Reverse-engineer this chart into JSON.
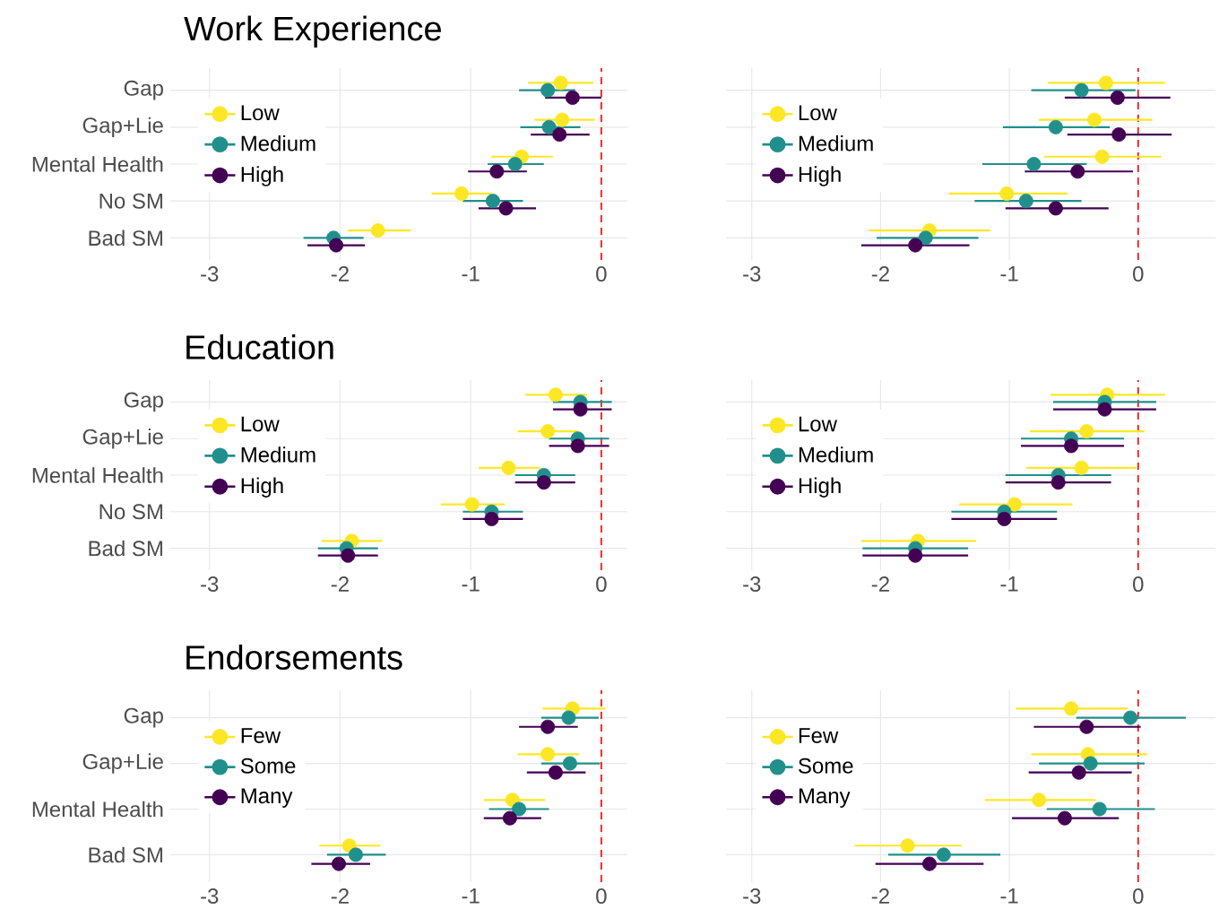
{
  "chart_data": [
    {
      "type": "scatter",
      "title": "Work Experience",
      "orientation": "horizontal",
      "categories": [
        "Gap",
        "Gap+Lie",
        "Mental Health",
        "No SM",
        "Bad SM"
      ],
      "xlim": [
        -3.3,
        0.2
      ],
      "xticks": [
        -3,
        -2,
        -1,
        0
      ],
      "grid": true,
      "legend": "left",
      "marker": "circle",
      "ref_lines": [
        {
          "axis": "x",
          "value": 0,
          "color": "#ff0000",
          "line_style": "dashed"
        }
      ],
      "series": [
        {
          "name": "Low",
          "color": "#fde725",
          "values": [
            -0.31,
            -0.3,
            -0.61,
            -1.07,
            -1.71
          ],
          "errors": [
            [
              -0.56,
              -0.06
            ],
            [
              -0.51,
              -0.05
            ],
            [
              -0.84,
              -0.37
            ],
            [
              -1.3,
              -0.84
            ],
            [
              -1.94,
              -1.46
            ]
          ]
        },
        {
          "name": "Medium",
          "color": "#21908c",
          "values": [
            -0.41,
            -0.4,
            -0.66,
            -0.83,
            -2.05
          ],
          "errors": [
            [
              -0.63,
              -0.2
            ],
            [
              -0.62,
              -0.16
            ],
            [
              -0.87,
              -0.44
            ],
            [
              -1.06,
              -0.6
            ],
            [
              -2.28,
              -1.82
            ]
          ]
        },
        {
          "name": "High",
          "color": "#440154",
          "values": [
            -0.22,
            -0.32,
            -0.8,
            -0.73,
            -2.03
          ],
          "errors": [
            [
              -0.43,
              0.0
            ],
            [
              -0.54,
              -0.09
            ],
            [
              -1.02,
              -0.57
            ],
            [
              -0.94,
              -0.5
            ],
            [
              -2.25,
              -1.81
            ]
          ]
        }
      ]
    },
    {
      "type": "scatter",
      "orientation": "horizontal",
      "categories": [
        null,
        null,
        null,
        null,
        null
      ],
      "xlim": [
        -3.2,
        0.6
      ],
      "xticks": [
        -3,
        -2,
        -1,
        0
      ],
      "grid": true,
      "legend": "left",
      "marker": "circle",
      "tick_labels": "x",
      "ref_lines": [
        {
          "axis": "x",
          "value": 0,
          "color": "#ff0000",
          "line_style": "dashed"
        }
      ],
      "series": [
        {
          "name": "Low",
          "color": "#fde725",
          "values": [
            -0.25,
            -0.34,
            -0.28,
            -1.02,
            -1.62
          ],
          "errors": [
            [
              -0.7,
              0.21
            ],
            [
              -0.77,
              0.11
            ],
            [
              -0.73,
              0.18
            ],
            [
              -1.47,
              -0.55
            ],
            [
              -2.09,
              -1.15
            ]
          ]
        },
        {
          "name": "Medium",
          "color": "#21908c",
          "values": [
            -0.44,
            -0.64,
            -0.81,
            -0.87,
            -1.65
          ],
          "errors": [
            [
              -0.83,
              -0.02
            ],
            [
              -1.05,
              -0.22
            ],
            [
              -1.21,
              -0.4
            ],
            [
              -1.27,
              -0.44
            ],
            [
              -2.03,
              -1.24
            ]
          ]
        },
        {
          "name": "High",
          "color": "#440154",
          "values": [
            -0.16,
            -0.15,
            -0.47,
            -0.64,
            -1.73
          ],
          "errors": [
            [
              -0.57,
              0.25
            ],
            [
              -0.55,
              0.26
            ],
            [
              -0.88,
              -0.04
            ],
            [
              -1.03,
              -0.23
            ],
            [
              -2.15,
              -1.31
            ]
          ]
        }
      ]
    },
    {
      "type": "scatter",
      "title": "Education",
      "orientation": "horizontal",
      "categories": [
        "Gap",
        "Gap+Lie",
        "Mental Health",
        "No SM",
        "Bad SM"
      ],
      "xlim": [
        -3.3,
        0.2
      ],
      "xticks": [
        -3,
        -2,
        -1,
        0
      ],
      "grid": true,
      "legend": "left",
      "marker": "circle",
      "ref_lines": [
        {
          "axis": "x",
          "value": 0,
          "color": "#ff0000",
          "line_style": "dashed"
        }
      ],
      "series": [
        {
          "name": "Low",
          "color": "#fde725",
          "values": [
            -0.35,
            -0.41,
            -0.71,
            -0.99,
            -1.91
          ],
          "errors": [
            [
              -0.58,
              -0.11
            ],
            [
              -0.64,
              -0.18
            ],
            [
              -0.94,
              -0.47
            ],
            [
              -1.23,
              -0.74
            ],
            [
              -2.14,
              -1.68
            ]
          ]
        },
        {
          "name": "Medium",
          "color": "#21908c",
          "values": [
            -0.16,
            -0.18,
            -0.44,
            -0.84,
            -1.95
          ],
          "errors": [
            [
              -0.37,
              0.08
            ],
            [
              -0.4,
              0.06
            ],
            [
              -0.66,
              -0.2
            ],
            [
              -1.06,
              -0.6
            ],
            [
              -2.17,
              -1.71
            ]
          ]
        },
        {
          "name": "High",
          "color": "#440154",
          "values": [
            -0.16,
            -0.18,
            -0.44,
            -0.84,
            -1.94
          ],
          "errors": [
            [
              -0.37,
              0.08
            ],
            [
              -0.4,
              0.06
            ],
            [
              -0.66,
              -0.2
            ],
            [
              -1.06,
              -0.6
            ],
            [
              -2.17,
              -1.71
            ]
          ]
        }
      ]
    },
    {
      "type": "scatter",
      "orientation": "horizontal",
      "categories": [
        null,
        null,
        null,
        null,
        null
      ],
      "xlim": [
        -3.2,
        0.6
      ],
      "xticks": [
        -3,
        -2,
        -1,
        0
      ],
      "grid": true,
      "legend": "left",
      "marker": "circle",
      "tick_labels": "x",
      "ref_lines": [
        {
          "axis": "x",
          "value": 0,
          "color": "#ff0000",
          "line_style": "dashed"
        }
      ],
      "series": [
        {
          "name": "Low",
          "color": "#fde725",
          "values": [
            -0.24,
            -0.4,
            -0.44,
            -0.96,
            -1.71
          ],
          "errors": [
            [
              -0.68,
              0.21
            ],
            [
              -0.84,
              0.05
            ],
            [
              -0.87,
              -0.01
            ],
            [
              -1.39,
              -0.51
            ],
            [
              -2.15,
              -1.26
            ]
          ]
        },
        {
          "name": "Medium",
          "color": "#21908c",
          "values": [
            -0.26,
            -0.52,
            -0.62,
            -1.04,
            -1.73
          ],
          "errors": [
            [
              -0.66,
              0.14
            ],
            [
              -0.91,
              -0.11
            ],
            [
              -1.03,
              -0.21
            ],
            [
              -1.45,
              -0.63
            ],
            [
              -2.14,
              -1.32
            ]
          ]
        },
        {
          "name": "High",
          "color": "#440154",
          "values": [
            -0.26,
            -0.52,
            -0.62,
            -1.04,
            -1.73
          ],
          "errors": [
            [
              -0.66,
              0.14
            ],
            [
              -0.91,
              -0.11
            ],
            [
              -1.03,
              -0.21
            ],
            [
              -1.45,
              -0.63
            ],
            [
              -2.14,
              -1.32
            ]
          ]
        }
      ]
    },
    {
      "type": "scatter",
      "title": "Endorsements",
      "orientation": "horizontal",
      "categories": [
        "Gap",
        "Gap+Lie",
        "Mental Health",
        "Bad SM"
      ],
      "xlim": [
        -3.3,
        0.2
      ],
      "xticks": [
        -3,
        -2,
        -1,
        0
      ],
      "grid": true,
      "legend": "left",
      "marker": "circle",
      "ref_lines": [
        {
          "axis": "x",
          "value": 0,
          "color": "#ff0000",
          "line_style": "dashed"
        }
      ],
      "series": [
        {
          "name": "Few",
          "color": "#fde725",
          "values": [
            -0.22,
            -0.41,
            -0.68,
            -1.93
          ],
          "errors": [
            [
              -0.45,
              0.03
            ],
            [
              -0.64,
              -0.17
            ],
            [
              -0.9,
              -0.43
            ],
            [
              -2.16,
              -1.69
            ]
          ]
        },
        {
          "name": "Some",
          "color": "#21908c",
          "values": [
            -0.25,
            -0.24,
            -0.63,
            -1.88
          ],
          "errors": [
            [
              -0.46,
              -0.02
            ],
            [
              -0.46,
              -0.01
            ],
            [
              -0.86,
              -0.4
            ],
            [
              -2.1,
              -1.65
            ]
          ]
        },
        {
          "name": "Many",
          "color": "#440154",
          "values": [
            -0.41,
            -0.35,
            -0.7,
            -2.01
          ],
          "errors": [
            [
              -0.63,
              -0.18
            ],
            [
              -0.57,
              -0.12
            ],
            [
              -0.9,
              -0.46
            ],
            [
              -2.22,
              -1.77
            ]
          ]
        }
      ]
    },
    {
      "type": "scatter",
      "orientation": "horizontal",
      "categories": [
        null,
        null,
        null,
        null
      ],
      "xlim": [
        -3.2,
        0.6
      ],
      "xticks": [
        -3,
        -2,
        -1,
        0
      ],
      "grid": true,
      "legend": "left",
      "marker": "circle",
      "tick_labels": "x",
      "ref_lines": [
        {
          "axis": "x",
          "value": 0,
          "color": "#ff0000",
          "line_style": "dashed"
        }
      ],
      "series": [
        {
          "name": "Few",
          "color": "#fde725",
          "values": [
            -0.52,
            -0.39,
            -0.77,
            -1.79
          ],
          "errors": [
            [
              -0.95,
              -0.08
            ],
            [
              -0.83,
              0.07
            ],
            [
              -1.19,
              -0.33
            ],
            [
              -2.2,
              -1.37
            ]
          ]
        },
        {
          "name": "Some",
          "color": "#21908c",
          "values": [
            -0.06,
            -0.37,
            -0.3,
            -1.51
          ],
          "errors": [
            [
              -0.48,
              0.37
            ],
            [
              -0.77,
              0.05
            ],
            [
              -0.71,
              0.13
            ],
            [
              -1.94,
              -1.07
            ]
          ]
        },
        {
          "name": "Many",
          "color": "#440154",
          "values": [
            -0.4,
            -0.46,
            -0.57,
            -1.62
          ],
          "errors": [
            [
              -0.81,
              0.02
            ],
            [
              -0.85,
              -0.05
            ],
            [
              -0.98,
              -0.15
            ],
            [
              -2.04,
              -1.2
            ]
          ]
        }
      ]
    }
  ]
}
